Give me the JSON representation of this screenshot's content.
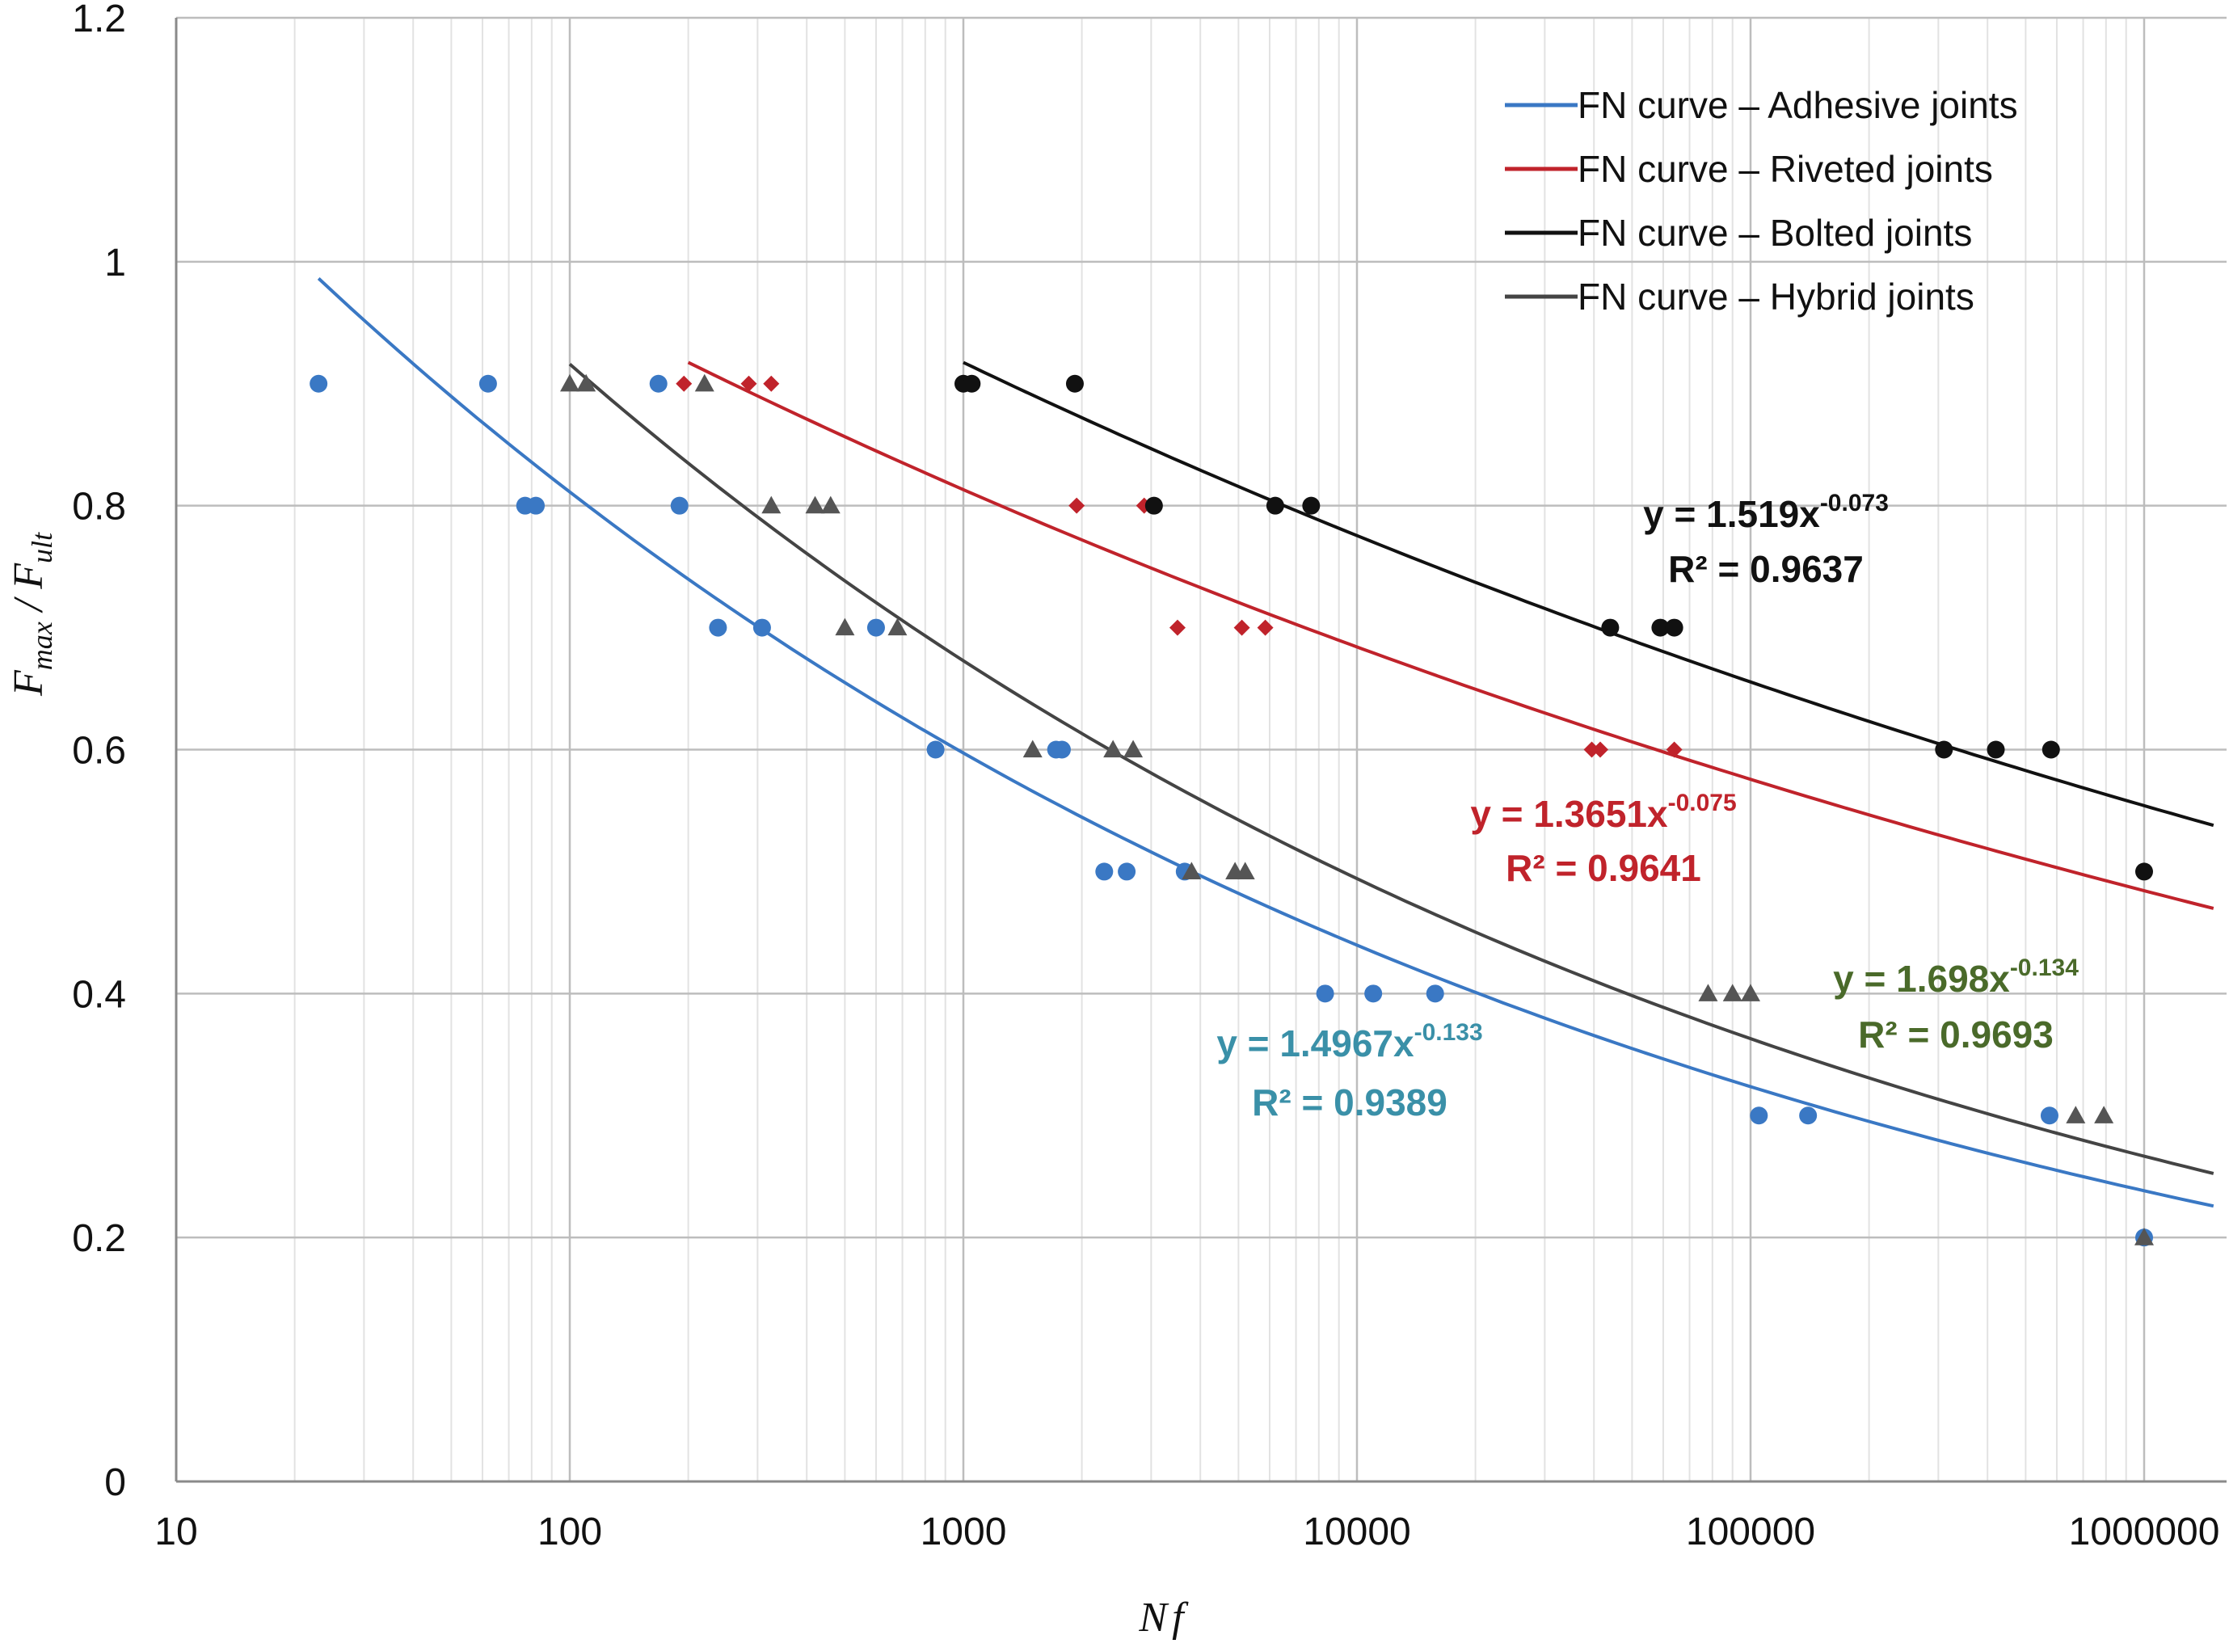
{
  "chart_data": {
    "type": "scatter",
    "title": "",
    "xlabel": "Nf",
    "ylabel": "F_max / F_ult",
    "ylabel_parts": {
      "f1": "F",
      "s1": "max",
      "slash": " / ",
      "f2": "F",
      "s2": "ult"
    },
    "xscale": "log",
    "xlim": [
      10,
      1000000
    ],
    "ylim": [
      0,
      1.2
    ],
    "xticks": [
      10,
      100,
      1000,
      10000,
      100000,
      1000000
    ],
    "xtick_labels": [
      "10",
      "100",
      "1000",
      "10000",
      "100000",
      "1000000"
    ],
    "yticks": [
      0,
      0.2,
      0.4,
      0.6,
      0.8,
      1,
      1.2
    ],
    "ytick_labels": [
      "0",
      "0.2",
      "0.4",
      "0.6",
      "0.8",
      "1",
      "1.2"
    ],
    "grid": true,
    "legend_position": "top-right",
    "series": [
      {
        "name": "Adhesive joints",
        "color": "#3a78c4",
        "marker": "circle",
        "points": [
          [
            23,
            0.9
          ],
          [
            62,
            0.9
          ],
          [
            77,
            0.8
          ],
          [
            82,
            0.8
          ],
          [
            168,
            0.9
          ],
          [
            190,
            0.8
          ],
          [
            238,
            0.7
          ],
          [
            308,
            0.7
          ],
          [
            600,
            0.7
          ],
          [
            850,
            0.6
          ],
          [
            1720,
            0.6
          ],
          [
            1780,
            0.6
          ],
          [
            2280,
            0.5
          ],
          [
            2600,
            0.5
          ],
          [
            3650,
            0.5
          ],
          [
            8300,
            0.4
          ],
          [
            11000,
            0.4
          ],
          [
            15800,
            0.4
          ],
          [
            105000,
            0.3
          ],
          [
            140000,
            0.3
          ],
          [
            575000,
            0.3
          ],
          [
            1000000,
            0.2
          ]
        ]
      },
      {
        "name": "Riveted joints",
        "color": "#c0232b",
        "marker": "diamond",
        "points": [
          [
            195,
            0.9
          ],
          [
            285,
            0.9
          ],
          [
            325,
            0.9
          ],
          [
            1940,
            0.8
          ],
          [
            2880,
            0.8
          ],
          [
            3500,
            0.7
          ],
          [
            5100,
            0.7
          ],
          [
            5850,
            0.7
          ],
          [
            39500,
            0.6
          ],
          [
            41500,
            0.6
          ],
          [
            64000,
            0.6
          ]
        ]
      },
      {
        "name": "Bolted joints",
        "color": "#111111",
        "marker": "circle",
        "points": [
          [
            1000,
            0.9
          ],
          [
            1050,
            0.9
          ],
          [
            1920,
            0.9
          ],
          [
            3050,
            0.8
          ],
          [
            6200,
            0.8
          ],
          [
            7650,
            0.8
          ],
          [
            44000,
            0.7
          ],
          [
            59000,
            0.7
          ],
          [
            64000,
            0.7
          ],
          [
            310000,
            0.6
          ],
          [
            420000,
            0.6
          ],
          [
            580000,
            0.6
          ],
          [
            1000000,
            0.5
          ]
        ]
      },
      {
        "name": "Hybrid joints",
        "color": "#555555",
        "marker": "triangle",
        "points": [
          [
            100,
            0.9
          ],
          [
            110,
            0.9
          ],
          [
            220,
            0.9
          ],
          [
            325,
            0.8
          ],
          [
            420,
            0.8
          ],
          [
            460,
            0.8
          ],
          [
            500,
            0.7
          ],
          [
            680,
            0.7
          ],
          [
            1500,
            0.6
          ],
          [
            2400,
            0.6
          ],
          [
            2700,
            0.6
          ],
          [
            3800,
            0.5
          ],
          [
            4900,
            0.5
          ],
          [
            5200,
            0.5
          ],
          [
            78000,
            0.4
          ],
          [
            90000,
            0.4
          ],
          [
            100000,
            0.4
          ],
          [
            670000,
            0.3
          ],
          [
            790000,
            0.3
          ],
          [
            1000000,
            0.2
          ]
        ]
      }
    ],
    "fits": [
      {
        "name": "FN curve – Adhesive joints",
        "color": "#3a78c4",
        "a": 1.4967,
        "b": -0.133,
        "x_range": [
          23,
          1500000
        ],
        "eq_text": "y = 1.4967x",
        "exp_text": "-0.133",
        "r2_text": "R² = 0.9389",
        "label_color": "#3a90a8"
      },
      {
        "name": "FN curve – Riveted joints",
        "color": "#c0232b",
        "a": 1.3651,
        "b": -0.075,
        "x_range": [
          200,
          1500000
        ],
        "eq_text": "y = 1.3651x",
        "exp_text": "-0.075",
        "r2_text": "R² = 0.9641",
        "label_color": "#c0232b"
      },
      {
        "name": "FN curve – Bolted joints",
        "color": "#111111",
        "a": 1.519,
        "b": -0.073,
        "x_range": [
          1000,
          1500000
        ],
        "eq_text": "y = 1.519x",
        "exp_text": "-0.073",
        "r2_text": "R² = 0.9637",
        "label_color": "#111111"
      },
      {
        "name": "FN curve – Hybrid joints",
        "color": "#444444",
        "a": 1.698,
        "b": -0.134,
        "x_range": [
          100,
          1500000
        ],
        "eq_text": "y = 1.698x",
        "exp_text": "-0.134",
        "r2_text": "R² = 0.9693",
        "label_color": "#4a6a2a"
      }
    ]
  }
}
